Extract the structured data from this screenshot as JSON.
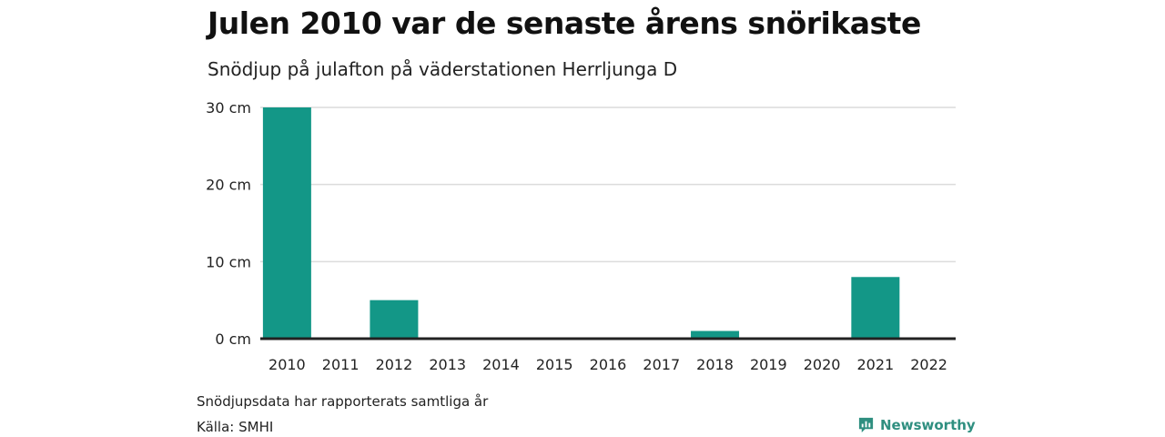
{
  "header": {
    "title": "Julen 2010 var de senaste årens snörikaste",
    "subtitle": "Snödjup på julafton på väderstationen Herrljunga D"
  },
  "footer": {
    "note": "Snödjupsdata har rapporterats samtliga år",
    "source": "Källa: SMHI",
    "brand": "Newsworthy",
    "brand_icon": "chart-logo-icon"
  },
  "colors": {
    "bar": "#139787",
    "grid": "#dcdcdc",
    "axis": "#222222",
    "brand": "#2f8f80"
  },
  "chart_data": {
    "type": "bar",
    "categories": [
      "2010",
      "2011",
      "2012",
      "2013",
      "2014",
      "2015",
      "2016",
      "2017",
      "2018",
      "2019",
      "2020",
      "2021",
      "2022"
    ],
    "values": [
      30,
      0,
      5,
      0,
      0,
      0,
      0,
      0,
      1,
      0,
      0,
      8,
      0
    ],
    "ylim": [
      0,
      30
    ],
    "yticks": [
      0,
      10,
      20,
      30
    ],
    "ytick_labels": [
      "0 cm",
      "10 cm",
      "20 cm",
      "30 cm"
    ],
    "grid": true
  }
}
